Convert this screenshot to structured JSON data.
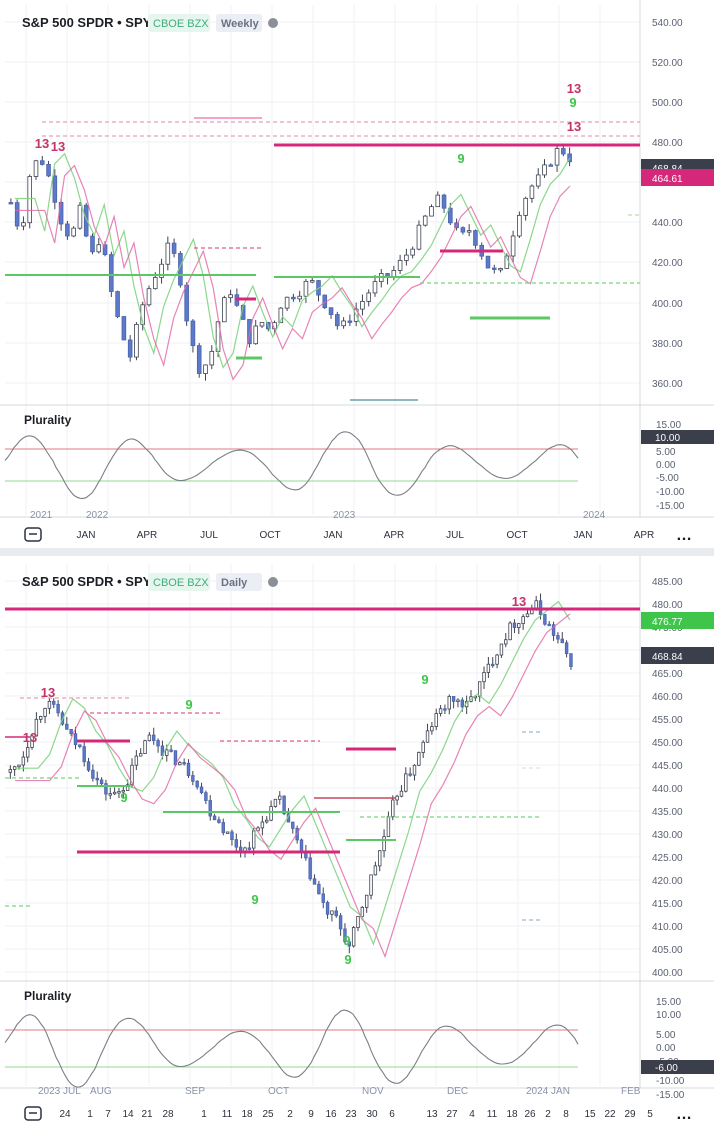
{
  "charts": [
    {
      "header": {
        "symbol": "S&P 500 SPDR • SPY",
        "exchange": "CBOE BZX",
        "interval": "Weekly"
      },
      "sub_title": "Plurality",
      "price_ticks": [
        "540.00",
        "520.00",
        "500.00",
        "480.00",
        "460.00",
        "440.00",
        "420.00",
        "400.00",
        "380.00",
        "360.00"
      ],
      "osc_ticks": [
        "15.00",
        "10.00",
        "5.00",
        "0.00",
        "-5.00",
        "-10.00",
        "-15.00"
      ],
      "price_tags": [
        {
          "label": "468.84",
          "color": "#3a3f4b"
        },
        {
          "label": "464.61",
          "color": "#d6287a"
        }
      ],
      "osc_tag": {
        "label": "10.00",
        "color": "#3a3f4b"
      },
      "year_labels": [
        "2021",
        "2022",
        "2023",
        "2024"
      ],
      "x_labels": [
        "JAN",
        "APR",
        "JUL",
        "OCT",
        "JAN",
        "APR",
        "JUL",
        "OCT",
        "JAN",
        "APR"
      ],
      "markers": [
        "13",
        "13",
        "13",
        "13",
        "9",
        "9"
      ]
    },
    {
      "header": {
        "symbol": "S&P 500 SPDR • SPY",
        "exchange": "CBOE BZX",
        "interval": "Daily"
      },
      "sub_title": "Plurality",
      "price_ticks": [
        "485.00",
        "480.00",
        "475.00",
        "470.00",
        "465.00",
        "460.00",
        "455.00",
        "450.00",
        "445.00",
        "440.00",
        "435.00",
        "430.00",
        "425.00",
        "420.00",
        "415.00",
        "410.00",
        "405.00",
        "400.00"
      ],
      "osc_ticks": [
        "15.00",
        "10.00",
        "5.00",
        "0.00",
        "-5.00",
        "-10.00",
        "-15.00"
      ],
      "price_tags": [
        {
          "label": "476.77",
          "color": "#3fc64a"
        },
        {
          "label": "468.84",
          "color": "#3a3f4b"
        }
      ],
      "osc_tag": {
        "label": "-6.00",
        "color": "#3a3f4b"
      },
      "year_labels": [
        "2023 JUL",
        "AUG",
        "SEP",
        "OCT",
        "NOV",
        "DEC",
        "2024 JAN",
        "FEB"
      ],
      "x_labels": [
        "24",
        "1",
        "7",
        "14",
        "21",
        "28",
        "1",
        "11",
        "18",
        "25",
        "2",
        "9",
        "16",
        "23",
        "30",
        "6",
        "13",
        "27",
        "4",
        "11",
        "18",
        "26",
        "2",
        "8",
        "15",
        "22",
        "29",
        "5"
      ],
      "markers": [
        "13",
        "13",
        "9",
        "9",
        "9",
        "9",
        "9",
        "13",
        "9"
      ]
    }
  ],
  "chart_data": [
    {
      "type": "candlestick",
      "title": "S&P 500 SPDR • SPY",
      "interval": "Weekly",
      "ylim": [
        350,
        545
      ],
      "x_range": [
        "2021-10",
        "2024-04"
      ],
      "y_close_series": [
        {
          "x": "2021-10",
          "y": 445
        },
        {
          "x": "2021-12",
          "y": 465
        },
        {
          "x": "2022-01",
          "y": 470
        },
        {
          "x": "2022-02",
          "y": 440
        },
        {
          "x": "2022-03",
          "y": 450
        },
        {
          "x": "2022-04",
          "y": 420
        },
        {
          "x": "2022-05",
          "y": 410
        },
        {
          "x": "2022-06",
          "y": 375
        },
        {
          "x": "2022-07",
          "y": 410
        },
        {
          "x": "2022-08",
          "y": 428
        },
        {
          "x": "2022-09",
          "y": 365
        },
        {
          "x": "2022-10",
          "y": 382
        },
        {
          "x": "2022-11",
          "y": 405
        },
        {
          "x": "2022-12",
          "y": 383
        },
        {
          "x": "2023-01",
          "y": 405
        },
        {
          "x": "2023-02",
          "y": 395
        },
        {
          "x": "2023-03",
          "y": 408
        },
        {
          "x": "2023-04",
          "y": 412
        },
        {
          "x": "2023-05",
          "y": 418
        },
        {
          "x": "2023-06",
          "y": 443
        },
        {
          "x": "2023-07",
          "y": 457
        },
        {
          "x": "2023-08",
          "y": 440
        },
        {
          "x": "2023-09",
          "y": 428
        },
        {
          "x": "2023-10",
          "y": 412
        },
        {
          "x": "2023-11",
          "y": 455
        },
        {
          "x": "2023-12",
          "y": 475
        },
        {
          "x": "2024-01",
          "y": 469
        }
      ],
      "last_price": 468.84,
      "indicator": {
        "name": "Plurality",
        "ylim": [
          -15,
          15
        ],
        "upper_line": 5,
        "lower_line": -5
      }
    },
    {
      "type": "candlestick",
      "title": "S&P 500 SPDR • SPY",
      "interval": "Daily",
      "ylim": [
        398,
        487
      ],
      "x_range": [
        "2023-07-20",
        "2024-02-05"
      ],
      "y_close_series": [
        {
          "x": "2023-07-24",
          "y": 445
        },
        {
          "x": "2023-07-31",
          "y": 456
        },
        {
          "x": "2023-08-07",
          "y": 449
        },
        {
          "x": "2023-08-14",
          "y": 437
        },
        {
          "x": "2023-08-21",
          "y": 440
        },
        {
          "x": "2023-08-28",
          "y": 450
        },
        {
          "x": "2023-09-05",
          "y": 445
        },
        {
          "x": "2023-09-11",
          "y": 447
        },
        {
          "x": "2023-09-18",
          "y": 437
        },
        {
          "x": "2023-09-25",
          "y": 428
        },
        {
          "x": "2023-10-02",
          "y": 430
        },
        {
          "x": "2023-10-09",
          "y": 434
        },
        {
          "x": "2023-10-16",
          "y": 427
        },
        {
          "x": "2023-10-23",
          "y": 412
        },
        {
          "x": "2023-10-30",
          "y": 425
        },
        {
          "x": "2023-11-06",
          "y": 440
        },
        {
          "x": "2023-11-13",
          "y": 449
        },
        {
          "x": "2023-11-27",
          "y": 456
        },
        {
          "x": "2023-12-04",
          "y": 459
        },
        {
          "x": "2023-12-11",
          "y": 470
        },
        {
          "x": "2023-12-18",
          "y": 474
        },
        {
          "x": "2023-12-26",
          "y": 476
        },
        {
          "x": "2024-01-02",
          "y": 468
        }
      ],
      "last_price": 468.84,
      "indicator": {
        "name": "Plurality",
        "ylim": [
          -15,
          15
        ],
        "upper_line": 5,
        "lower_line": -5
      }
    }
  ]
}
